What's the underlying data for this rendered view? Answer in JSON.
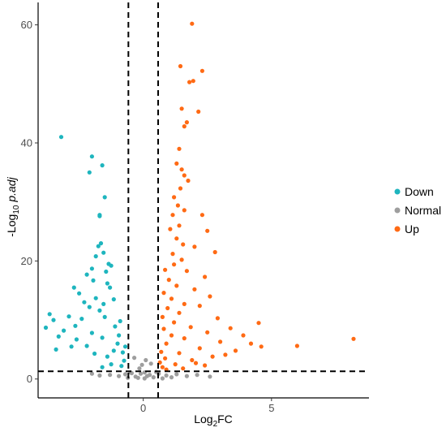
{
  "chart_data": {
    "type": "scatter",
    "title": "",
    "xlabel": {
      "base": "Log",
      "sub": "2",
      "rest": "FC"
    },
    "ylabel": {
      "base": "-Log",
      "sub": "10",
      "rest": " p.adj"
    },
    "xlim": [
      -4.1,
      8.8
    ],
    "ylim": [
      -3.2,
      63.8
    ],
    "x_ticks": [
      0,
      5
    ],
    "y_ticks": [
      0,
      20,
      40,
      60
    ],
    "grid": false,
    "legend_position": "right",
    "thresholds": {
      "vertical": [
        -0.58,
        0.58
      ],
      "horizontal": 1.3
    },
    "threshold_line_color": "#000000",
    "series": [
      {
        "name": "Down",
        "color": "#1EB5BE",
        "points": [
          [
            -3.2,
            41.0
          ],
          [
            -2.0,
            37.7
          ],
          [
            -2.1,
            35.0
          ],
          [
            -1.6,
            36.2
          ],
          [
            -1.5,
            30.8
          ],
          [
            -1.7,
            27.8
          ],
          [
            -1.7,
            27.6
          ],
          [
            -1.65,
            23.0
          ],
          [
            -1.75,
            22.5
          ],
          [
            -1.55,
            21.4
          ],
          [
            -1.85,
            20.8
          ],
          [
            -1.35,
            19.5
          ],
          [
            -1.25,
            19.2
          ],
          [
            -2.0,
            18.7
          ],
          [
            -1.45,
            18.2
          ],
          [
            -2.2,
            17.7
          ],
          [
            -1.95,
            16.7
          ],
          [
            -1.4,
            16.2
          ],
          [
            -2.7,
            15.5
          ],
          [
            -1.3,
            15.5
          ],
          [
            -2.5,
            14.5
          ],
          [
            -1.85,
            13.7
          ],
          [
            -1.15,
            13.5
          ],
          [
            -2.3,
            13.0
          ],
          [
            -1.55,
            12.7
          ],
          [
            -2.1,
            12.2
          ],
          [
            -1.7,
            11.6
          ],
          [
            -3.65,
            11.0
          ],
          [
            -2.9,
            10.6
          ],
          [
            -3.5,
            10.0
          ],
          [
            -2.4,
            10.2
          ],
          [
            -1.5,
            10.5
          ],
          [
            -2.65,
            9.0
          ],
          [
            -3.8,
            8.7
          ],
          [
            -3.1,
            8.2
          ],
          [
            -2.0,
            7.8
          ],
          [
            -3.3,
            7.2
          ],
          [
            -2.6,
            6.7
          ],
          [
            -1.6,
            7.0
          ],
          [
            -2.8,
            5.5
          ],
          [
            -3.4,
            5.0
          ],
          [
            -2.2,
            5.6
          ],
          [
            -1.1,
            8.9
          ],
          [
            -0.95,
            7.4
          ],
          [
            -1.0,
            6.0
          ],
          [
            -0.8,
            4.5
          ],
          [
            -0.75,
            3.1
          ],
          [
            -1.4,
            3.8
          ],
          [
            -1.9,
            4.3
          ],
          [
            -0.85,
            2.2
          ],
          [
            -1.25,
            2.5
          ],
          [
            -1.6,
            2.0
          ],
          [
            -0.7,
            5.5
          ],
          [
            -1.15,
            4.8
          ],
          [
            -0.9,
            9.8
          ]
        ]
      },
      {
        "name": "Normal",
        "color": "#9E9E9E",
        "points": [
          [
            -0.3,
            0.4
          ],
          [
            -0.1,
            0.9
          ],
          [
            0.05,
            1.1
          ],
          [
            0.25,
            0.7
          ],
          [
            -0.45,
            1.0
          ],
          [
            0.4,
            0.3
          ],
          [
            -0.2,
            0.2
          ],
          [
            0.15,
            0.5
          ],
          [
            0.6,
            0.9
          ],
          [
            -0.7,
            0.8
          ],
          [
            0.9,
            0.6
          ],
          [
            -0.95,
            0.5
          ],
          [
            1.3,
            0.8
          ],
          [
            -1.3,
            0.7
          ],
          [
            1.7,
            0.5
          ],
          [
            -1.7,
            0.6
          ],
          [
            2.1,
            0.7
          ],
          [
            -2.0,
            0.9
          ],
          [
            2.6,
            0.4
          ],
          [
            -0.05,
            2.4
          ],
          [
            0.1,
            3.2
          ],
          [
            -0.15,
            1.8
          ],
          [
            0.3,
            2.6
          ],
          [
            -0.35,
            3.6
          ],
          [
            0.5,
            1.2
          ],
          [
            -0.5,
            1.1
          ],
          [
            0.05,
            0.1
          ],
          [
            -0.6,
            0.2
          ],
          [
            0.75,
            0.1
          ],
          [
            1.1,
            0.3
          ]
        ]
      },
      {
        "name": "Up",
        "color": "#FF6A14",
        "points": [
          [
            1.9,
            60.2
          ],
          [
            1.45,
            53.0
          ],
          [
            2.3,
            52.2
          ],
          [
            1.8,
            50.3
          ],
          [
            1.95,
            50.5
          ],
          [
            1.5,
            45.8
          ],
          [
            2.15,
            45.3
          ],
          [
            1.7,
            43.5
          ],
          [
            1.6,
            42.8
          ],
          [
            1.4,
            39.0
          ],
          [
            1.3,
            36.5
          ],
          [
            1.5,
            35.5
          ],
          [
            1.6,
            34.5
          ],
          [
            1.75,
            33.6
          ],
          [
            1.45,
            32.3
          ],
          [
            1.2,
            30.8
          ],
          [
            1.35,
            29.4
          ],
          [
            1.6,
            28.6
          ],
          [
            1.15,
            27.8
          ],
          [
            2.3,
            27.8
          ],
          [
            1.4,
            26.0
          ],
          [
            1.05,
            25.4
          ],
          [
            2.5,
            25.1
          ],
          [
            1.3,
            23.8
          ],
          [
            1.55,
            22.8
          ],
          [
            2.0,
            22.4
          ],
          [
            1.15,
            21.2
          ],
          [
            1.5,
            20.2
          ],
          [
            2.8,
            21.5
          ],
          [
            1.2,
            19.4
          ],
          [
            0.85,
            18.5
          ],
          [
            1.7,
            18.3
          ],
          [
            2.4,
            17.3
          ],
          [
            1.0,
            16.8
          ],
          [
            1.3,
            15.8
          ],
          [
            2.0,
            15.2
          ],
          [
            0.8,
            14.6
          ],
          [
            2.6,
            14.0
          ],
          [
            1.1,
            13.6
          ],
          [
            1.6,
            12.7
          ],
          [
            0.95,
            12.0
          ],
          [
            2.2,
            12.4
          ],
          [
            1.4,
            11.2
          ],
          [
            0.75,
            10.5
          ],
          [
            2.9,
            10.3
          ],
          [
            1.2,
            9.6
          ],
          [
            4.5,
            9.5
          ],
          [
            1.85,
            8.8
          ],
          [
            0.8,
            8.5
          ],
          [
            3.4,
            8.6
          ],
          [
            2.5,
            7.9
          ],
          [
            1.1,
            7.4
          ],
          [
            3.9,
            7.4
          ],
          [
            8.2,
            6.8
          ],
          [
            1.6,
            6.9
          ],
          [
            4.2,
            6.0
          ],
          [
            3.0,
            6.3
          ],
          [
            0.9,
            6.0
          ],
          [
            6.0,
            5.6
          ],
          [
            4.6,
            5.5
          ],
          [
            2.2,
            5.2
          ],
          [
            3.6,
            4.8
          ],
          [
            0.7,
            4.6
          ],
          [
            1.4,
            4.4
          ],
          [
            3.2,
            4.1
          ],
          [
            2.7,
            3.8
          ],
          [
            0.85,
            3.5
          ],
          [
            1.9,
            3.2
          ],
          [
            0.65,
            2.8
          ],
          [
            1.25,
            2.5
          ],
          [
            2.4,
            2.3
          ],
          [
            0.75,
            2.0
          ],
          [
            1.55,
            1.8
          ],
          [
            0.9,
            1.6
          ],
          [
            2.05,
            2.7
          ]
        ]
      }
    ]
  }
}
